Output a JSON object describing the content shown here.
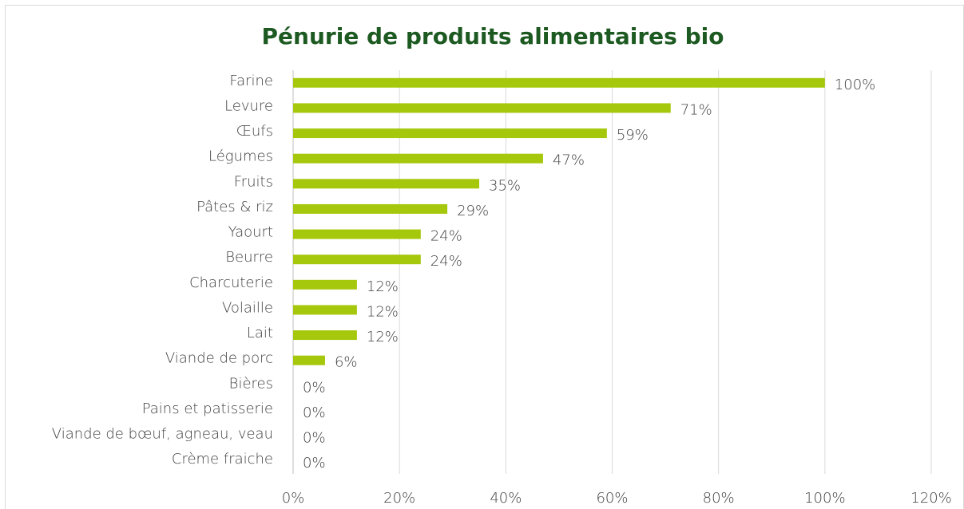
{
  "chart_data": {
    "type": "bar",
    "orientation": "horizontal",
    "title": "Pénurie de produits alimentaires bio",
    "categories": [
      "Farine",
      "Levure",
      "Œufs",
      "Légumes",
      "Fruits",
      "Pâtes & riz",
      "Yaourt",
      "Beurre",
      "Charcuterie",
      "Volaille",
      "Lait",
      "Viande de porc",
      "Bières",
      "Pains et patisserie",
      "Viande de bœuf, agneau, veau",
      "Crème fraiche"
    ],
    "values": [
      100,
      71,
      59,
      47,
      35,
      29,
      24,
      24,
      12,
      12,
      12,
      6,
      0,
      0,
      0,
      0
    ],
    "value_labels": [
      "100%",
      "71%",
      "59%",
      "47%",
      "35%",
      "29%",
      "24%",
      "24%",
      "12%",
      "12%",
      "12%",
      "6%",
      "0%",
      "0%",
      "0%",
      "0%"
    ],
    "color": "#a5c80c",
    "xlim": [
      0,
      120
    ],
    "xticks": [
      {
        "value": 0,
        "label": "0%"
      },
      {
        "value": 20,
        "label": "20%"
      },
      {
        "value": 40,
        "label": "40%"
      },
      {
        "value": 60,
        "label": "60%"
      },
      {
        "value": 80,
        "label": "80%"
      },
      {
        "value": 100,
        "label": "100%"
      },
      {
        "value": 120,
        "label": "120%"
      }
    ],
    "grid": true
  }
}
